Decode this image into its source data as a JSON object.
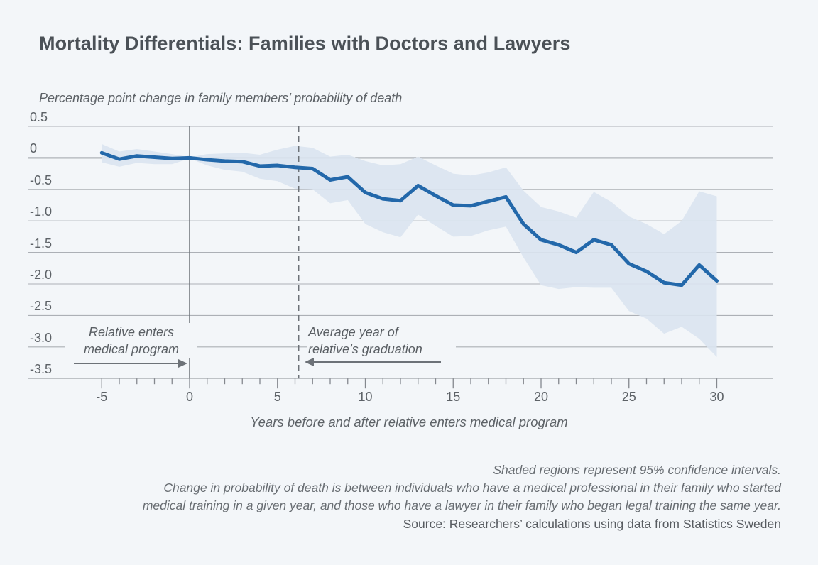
{
  "chart_data": {
    "type": "line",
    "title": "Mortality Differentials: Families with Doctors and Lawyers",
    "y_axis_label": "Percentage point change in family members’ probability of death",
    "x_axis_label": "Years before and after relative enters medical program",
    "x": [
      -5,
      -4,
      -3,
      -2,
      -1,
      0,
      1,
      2,
      3,
      4,
      5,
      6,
      7,
      8,
      9,
      10,
      11,
      12,
      13,
      14,
      15,
      16,
      17,
      18,
      19,
      20,
      21,
      22,
      23,
      24,
      25,
      26,
      27,
      28,
      29,
      30
    ],
    "series": [
      {
        "name": "Change in family members’ probability of death (doctor vs. lawyer families)",
        "values": [
          0.08,
          -0.02,
          0.03,
          0.01,
          -0.01,
          0,
          -0.03,
          -0.05,
          -0.06,
          -0.13,
          -0.12,
          -0.15,
          -0.17,
          -0.35,
          -0.3,
          -0.55,
          -0.65,
          -0.68,
          -0.44,
          -0.6,
          -0.75,
          -0.76,
          -0.69,
          -0.62,
          -1.05,
          -1.3,
          -1.38,
          -1.5,
          -1.3,
          -1.38,
          -1.68,
          -1.8,
          -1.98,
          -2.02,
          -1.7,
          -1.95
        ]
      }
    ],
    "band": {
      "name": "95% confidence interval",
      "upper": [
        0.22,
        0.1,
        0.14,
        0.1,
        0.06,
        0.01,
        0.06,
        0.07,
        0.08,
        0.05,
        0.13,
        0.19,
        0.16,
        0.02,
        0.05,
        -0.05,
        -0.12,
        -0.1,
        0.02,
        -0.12,
        -0.25,
        -0.28,
        -0.23,
        -0.15,
        -0.52,
        -0.78,
        -0.85,
        -0.95,
        -0.54,
        -0.7,
        -0.93,
        -1.05,
        -1.21,
        -1.0,
        -0.53,
        -0.61
      ],
      "lower": [
        -0.07,
        -0.14,
        -0.08,
        -0.1,
        -0.1,
        -0.01,
        -0.12,
        -0.19,
        -0.22,
        -0.33,
        -0.37,
        -0.49,
        -0.5,
        -0.72,
        -0.67,
        -1.05,
        -1.18,
        -1.26,
        -0.9,
        -1.08,
        -1.25,
        -1.24,
        -1.15,
        -1.09,
        -1.58,
        -2.02,
        -2.08,
        -2.05,
        -2.06,
        -2.06,
        -2.43,
        -2.55,
        -2.79,
        -2.68,
        -2.87,
        -3.16
      ]
    },
    "y_ticks": [
      0.5,
      0,
      -0.5,
      -1.0,
      -1.5,
      -2.0,
      -2.5,
      -3.0,
      -3.5
    ],
    "y_tick_labels": [
      "0.5",
      "0",
      "-0.5",
      "-1.0",
      "-1.5",
      "-2.0",
      "-2.5",
      "-3.0",
      "-3.5"
    ],
    "x_label_ticks": [
      -5,
      0,
      5,
      10,
      15,
      20,
      25,
      30
    ],
    "x_minor_tick_step": 1,
    "xlim": [
      -5,
      30
    ],
    "ylim": [
      -3.5,
      0.5
    ],
    "grid": true,
    "legend": "none",
    "markers": {
      "entry_year": 0,
      "graduation_year": 6.2
    },
    "annotations": {
      "entry": {
        "line1": "Relative enters",
        "line2": "medical program"
      },
      "graduation": {
        "line1": "Average year of",
        "line2": "relative’s graduation"
      }
    },
    "colors": {
      "line": "#2368aa",
      "band": "#dae4ef",
      "grid": "#acb0b6",
      "zero_line": "#6d7278",
      "axis": "#84888e",
      "marker_line": "#6d7278",
      "arrow": "#6d7278",
      "background": "#f3f6f9"
    }
  },
  "footnotes": [
    "Shaded regions represent 95% confidence intervals.",
    "Change in probability of death is between individuals who have a medical professional in their family who started",
    "medical training in a given year, and those who have a lawyer in their family who began legal training the same year.",
    "Source: Researchers’ calculations using data from Statistics Sweden"
  ]
}
